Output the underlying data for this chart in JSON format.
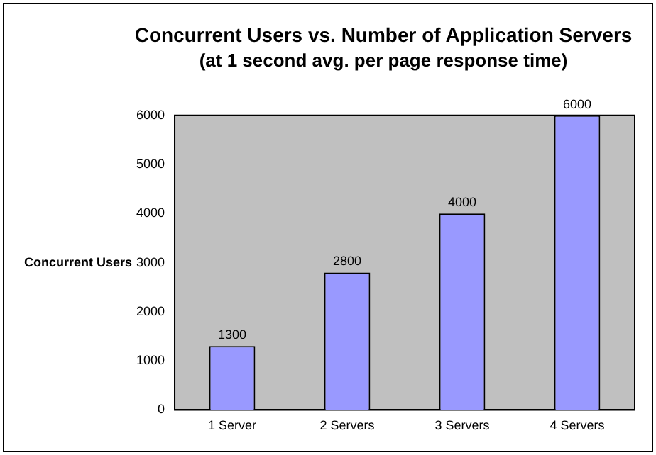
{
  "chart_data": {
    "type": "bar",
    "title": "Concurrent Users vs. Number of Application Servers",
    "subtitle": "(at 1 second avg. per page response time)",
    "ylabel": "Concurrent Users",
    "categories": [
      "1 Server",
      "2 Servers",
      "3 Servers",
      "4 Servers"
    ],
    "values": [
      1300,
      2800,
      4000,
      6000
    ],
    "color": "#9999ff",
    "ylim": [
      0,
      6000
    ],
    "yticks": [
      0,
      1000,
      2000,
      3000,
      4000,
      5000,
      6000
    ],
    "grid": false,
    "legend": false,
    "data_labels": true
  }
}
